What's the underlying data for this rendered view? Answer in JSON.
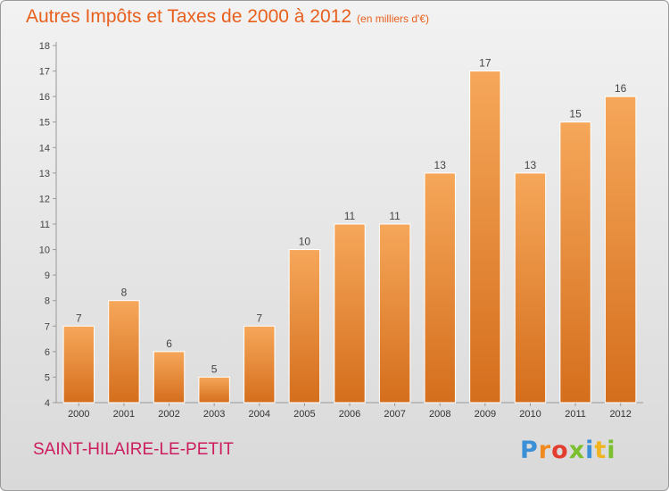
{
  "header": {
    "title": "Autres Impôts et Taxes de 2000 à 2012",
    "subtitle": "(en milliers d'€)"
  },
  "footer": {
    "place": "SAINT-HILAIRE-LE-PETIT",
    "logo_letters": [
      "P",
      "r",
      "o",
      "x",
      "i",
      "t",
      "i"
    ]
  },
  "colors": {
    "title": "#e8601e",
    "place": "#cc1d5f",
    "bar_light": "#f6a75a",
    "bar_dark": "#d46e1c"
  },
  "chart_data": {
    "type": "bar",
    "title": "Autres Impôts et Taxes de 2000 à 2012",
    "subtitle": "(en milliers d'€)",
    "xlabel": "",
    "ylabel": "",
    "ylim": [
      4,
      18
    ],
    "yticks": [
      4,
      5,
      6,
      7,
      8,
      9,
      10,
      11,
      12,
      13,
      14,
      15,
      16,
      17,
      18
    ],
    "categories": [
      "2000",
      "2001",
      "2002",
      "2003",
      "2004",
      "2005",
      "2006",
      "2007",
      "2008",
      "2009",
      "2010",
      "2011",
      "2012"
    ],
    "values": [
      7,
      8,
      6,
      5,
      7,
      10,
      11,
      11,
      13,
      17,
      13,
      15,
      16
    ],
    "value_labels": [
      "7",
      "8",
      "6",
      "5",
      "7",
      "10",
      "11",
      "11",
      "13",
      "17",
      "13",
      "15",
      "16"
    ],
    "grid": false
  }
}
